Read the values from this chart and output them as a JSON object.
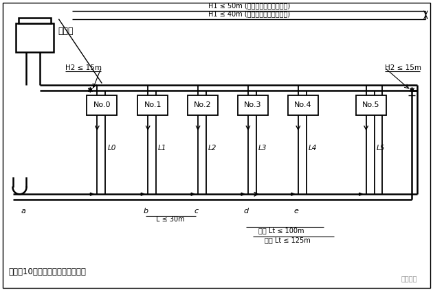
{
  "figsize": [
    6.3,
    4.23
  ],
  "dpi": 100,
  "outdoor_unit_label": "室外机",
  "h1_line1": "H1 ≤ 50m (室外机位置高于室内机)",
  "h1_line2": "H1 ≤ 40m (室外机位置低于室内机)",
  "h2_label_left": "H2 ≤ 15m",
  "h2_label_right": "H2 ≤ 15m",
  "branch_labels": [
    "No.0",
    "No.1",
    "No.2",
    "No.3",
    "No.4",
    "No.5"
  ],
  "leg_labels": [
    "L0",
    "L1",
    "L2",
    "L3",
    "L4",
    "L5"
  ],
  "point_labels": [
    "a",
    "b",
    "c",
    "d",
    "e"
  ],
  "l_label": "L ≤ 30m",
  "lt_label1": "实际 Lt ≤ 100m",
  "lt_label2": "当量 Lt ≤ 125m",
  "bottom_note": "立管每10米高度须提供一个回油弯",
  "watermark": "制冷百科"
}
